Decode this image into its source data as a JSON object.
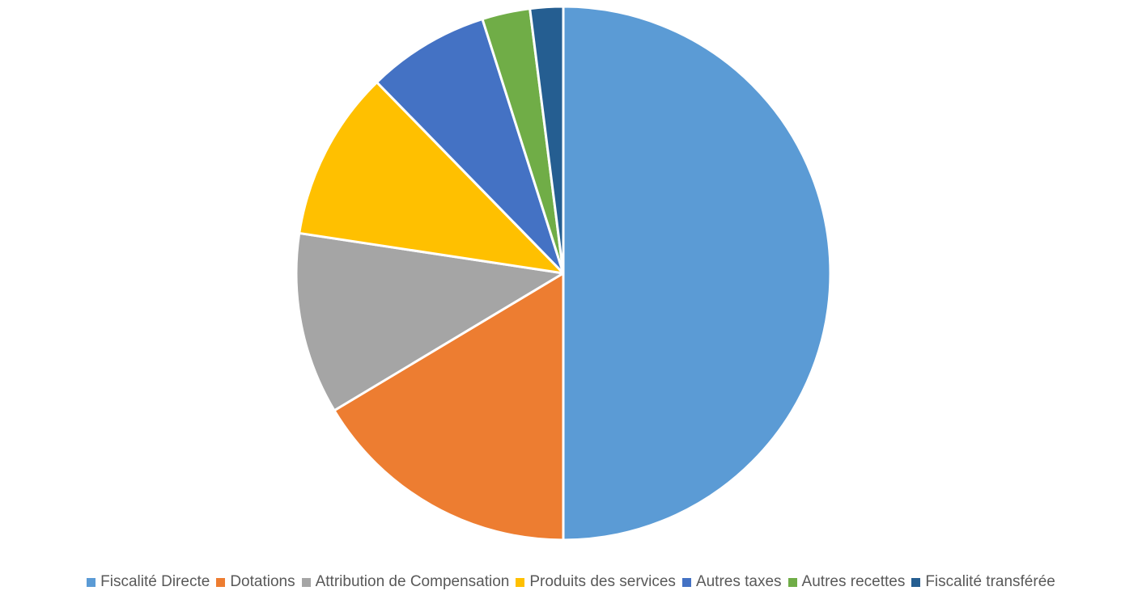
{
  "chart_data": {
    "type": "pie",
    "title": "",
    "start_angle_deg": 0,
    "direction": "clockwise",
    "legend_position": "bottom",
    "slices": [
      {
        "label": "Fiscalité Directe",
        "value": 50.0,
        "color": "#5B9BD5"
      },
      {
        "label": "Dotations",
        "value": 16.4,
        "color": "#ED7D31"
      },
      {
        "label": "Attribution de Compensation",
        "value": 11.0,
        "color": "#A5A5A5"
      },
      {
        "label": "Produits des services",
        "value": 10.3,
        "color": "#FFC000"
      },
      {
        "label": "Autres taxes",
        "value": 7.4,
        "color": "#4472C4"
      },
      {
        "label": "Autres recettes",
        "value": 2.9,
        "color": "#70AD47"
      },
      {
        "label": "Fiscalité transférée",
        "value": 2.0,
        "color": "#255E91"
      }
    ]
  }
}
